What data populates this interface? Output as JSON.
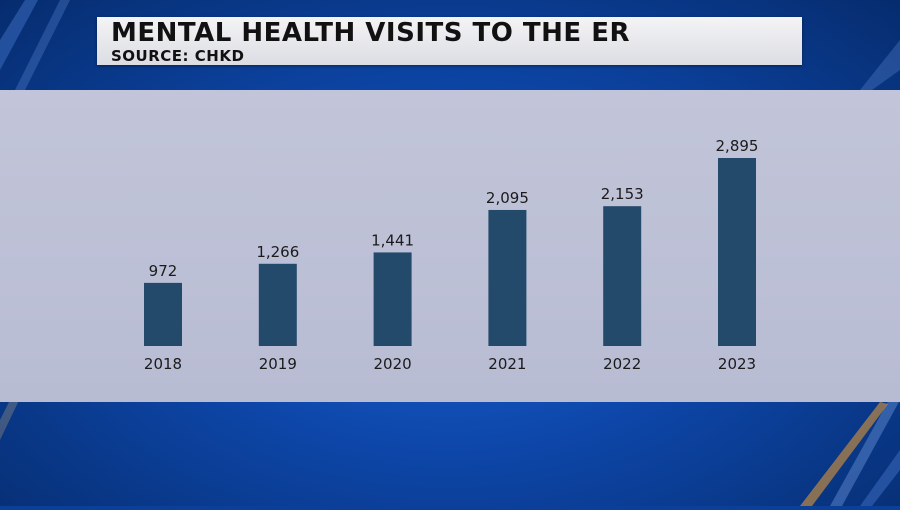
{
  "header": {
    "title": "MENTAL HEALTH VISITS TO THE ER",
    "source": "SOURCE: CHKD"
  },
  "colors": {
    "bar": "#244a6b",
    "panel": "#c2c5d9",
    "background": "#0d46a8"
  },
  "chart_data": {
    "type": "bar",
    "title": "MENTAL HEALTH VISITS TO THE ER",
    "subtitle": "SOURCE: CHKD",
    "categories": [
      "2018",
      "2019",
      "2020",
      "2021",
      "2022",
      "2023"
    ],
    "values": [
      972,
      1266,
      1441,
      2095,
      2153,
      2895
    ],
    "value_labels": [
      "972",
      "1,266",
      "1,441",
      "2,095",
      "2,153",
      "2,895"
    ],
    "xlabel": "",
    "ylabel": "",
    "grid": false,
    "legend": "none"
  }
}
